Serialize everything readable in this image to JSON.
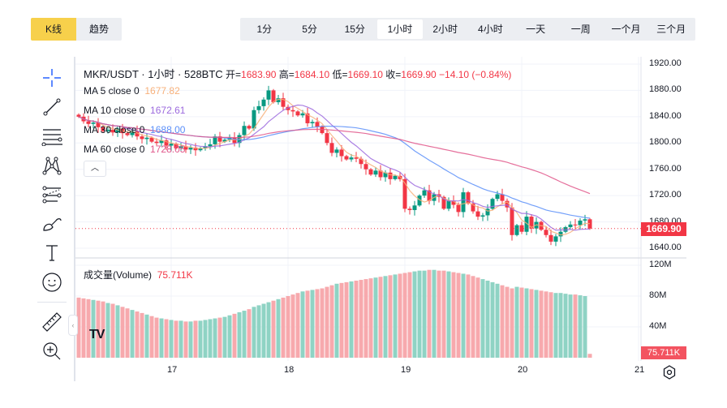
{
  "chart_tabs": [
    {
      "label": "K线",
      "active": true
    },
    {
      "label": "趋势",
      "active": false
    }
  ],
  "intervals": [
    {
      "label": "1分"
    },
    {
      "label": "5分"
    },
    {
      "label": "15分"
    },
    {
      "label": "1小时",
      "active": true
    },
    {
      "label": "2小时"
    },
    {
      "label": "4小时"
    },
    {
      "label": "一天"
    },
    {
      "label": "一周"
    },
    {
      "label": "一个月"
    },
    {
      "label": "三个月"
    }
  ],
  "legend": {
    "symbol": "MKR/USDT · 1小时 · 528BTC",
    "open_label": "开=",
    "open": "1683.90",
    "high_label": "高=",
    "high": "1684.10",
    "low_label": "低=",
    "low": "1669.10",
    "close_label": "收=",
    "close": "1669.90",
    "change": "−14.10 (−0.84%)",
    "ma": [
      {
        "label": "MA 5 close 0",
        "value": "1677.82",
        "color": "#f7b07a"
      },
      {
        "label": "MA 10 close 0",
        "value": "1672.61",
        "color": "#9c6ade"
      },
      {
        "label": "MA 30 close 0",
        "value": "1688.00",
        "color": "#5b8ff9"
      },
      {
        "label": "MA 60 close 0",
        "value": "1728.05",
        "color": "#e0568a"
      }
    ],
    "volume_label": "成交量(Volume)",
    "volume_value": "75.711K"
  },
  "current_price": "1669.90",
  "current_volume": "75.711K",
  "colors": {
    "up": "#089981",
    "down": "#f23645",
    "up_vol": "#8fd3c4",
    "down_vol": "#f7a9ad"
  },
  "chart_data": {
    "type": "candlestick",
    "price_ticks": [
      "1920.00",
      "1880.00",
      "1840.00",
      "1800.00",
      "1760.00",
      "1720.00",
      "1680.00",
      "1640.00"
    ],
    "ylim": [
      1640,
      1920
    ],
    "volume_ticks": [
      "120M",
      "80M",
      "40M"
    ],
    "volume_ylim": [
      0,
      120
    ],
    "x_ticks": [
      "17",
      "18",
      "19",
      "20",
      "21"
    ],
    "x_tick_index": [
      19,
      43,
      67,
      91,
      115
    ],
    "closes": [
      1840,
      1833,
      1829,
      1831,
      1824,
      1818,
      1820,
      1816,
      1822,
      1815,
      1812,
      1818,
      1810,
      1806,
      1808,
      1802,
      1800,
      1804,
      1796,
      1799,
      1792,
      1795,
      1790,
      1793,
      1789,
      1792,
      1795,
      1798,
      1810,
      1802,
      1805,
      1808,
      1800,
      1812,
      1826,
      1822,
      1850,
      1856,
      1866,
      1880,
      1862,
      1868,
      1855,
      1850,
      1848,
      1842,
      1845,
      1830,
      1832,
      1825,
      1815,
      1800,
      1785,
      1790,
      1780,
      1775,
      1778,
      1776,
      1768,
      1760,
      1752,
      1758,
      1748,
      1755,
      1745,
      1750,
      1745,
      1700,
      1698,
      1705,
      1720,
      1728,
      1712,
      1722,
      1718,
      1700,
      1712,
      1706,
      1695,
      1725,
      1708,
      1696,
      1688,
      1690,
      1700,
      1715,
      1722,
      1712,
      1702,
      1660,
      1675,
      1665,
      1688,
      1670,
      1680,
      1668,
      1660,
      1650,
      1658,
      1665,
      1672,
      1676,
      1675,
      1682,
      1684,
      1669.9
    ],
    "volumes_M": [
      78,
      77,
      76,
      75,
      74,
      73,
      71,
      70,
      68,
      66,
      64,
      62,
      60,
      58,
      56,
      54,
      52,
      51,
      50,
      49,
      48,
      48,
      47,
      47,
      48,
      48,
      49,
      50,
      51,
      52,
      53,
      55,
      57,
      59,
      61,
      63,
      66,
      68,
      70,
      72,
      74,
      76,
      78,
      80,
      82,
      84,
      86,
      87,
      88,
      89,
      90,
      92,
      94,
      96,
      97,
      98,
      99,
      100,
      101,
      102,
      103,
      104,
      105,
      106,
      107,
      108,
      109,
      110,
      111,
      112,
      113,
      113,
      114,
      114,
      113,
      113,
      112,
      111,
      110,
      109,
      108,
      106,
      104,
      102,
      100,
      98,
      96,
      94,
      92,
      90,
      92,
      91,
      90,
      89,
      88,
      87,
      86,
      85,
      84,
      84,
      83,
      82,
      82,
      81,
      80,
      5
    ]
  }
}
